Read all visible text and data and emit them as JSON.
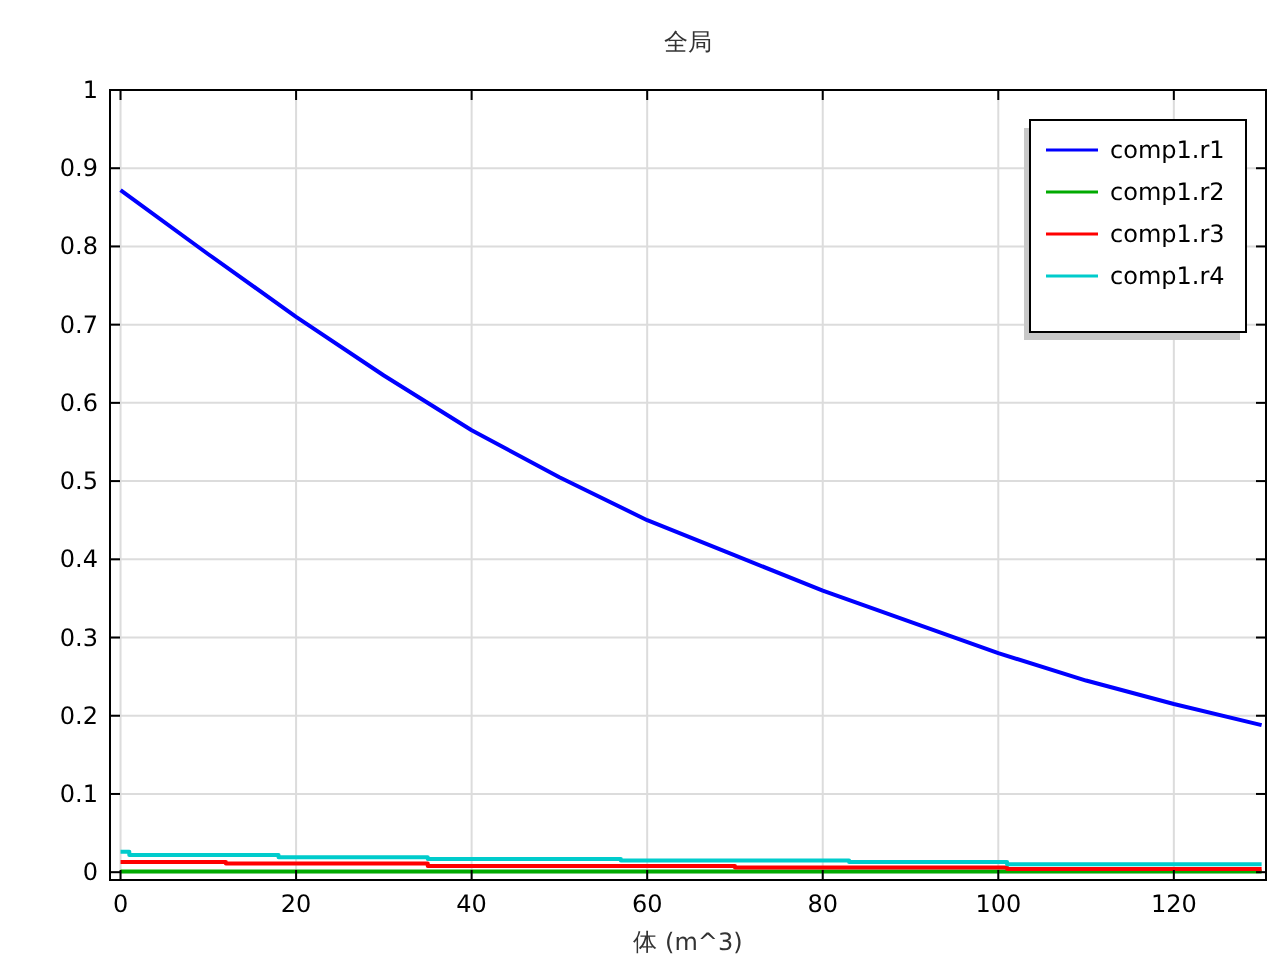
{
  "chart_data": {
    "type": "line",
    "title": "全局",
    "xlabel": "体 (m^3)",
    "xlim": [
      -1.2,
      130.5
    ],
    "ylim": [
      -0.01,
      1
    ],
    "xticks": [
      0,
      20,
      40,
      60,
      80,
      100,
      120
    ],
    "yticks": [
      0,
      0.1,
      0.2,
      0.3,
      0.4,
      0.5,
      0.6,
      0.7,
      0.8,
      0.9,
      1
    ],
    "grid": true,
    "legend": "top right",
    "line_style": "solid",
    "marker": "none",
    "series": [
      {
        "name": "comp1.r1",
        "color": "#0000ff",
        "x": [
          0,
          10,
          20,
          30,
          40,
          50,
          60,
          70,
          80,
          90,
          100,
          110,
          120,
          130
        ],
        "values": [
          0.872,
          0.79,
          0.71,
          0.635,
          0.565,
          0.505,
          0.45,
          0.405,
          0.36,
          0.32,
          0.28,
          0.245,
          0.215,
          0.188
        ]
      },
      {
        "name": "comp1.r2",
        "color": "#00aa00",
        "x": [
          0,
          130
        ],
        "values": [
          0.001,
          0.001
        ]
      },
      {
        "name": "comp1.r3",
        "color": "#ff0000",
        "x": [
          0,
          12,
          12,
          35,
          35,
          70,
          70,
          101,
          101,
          130
        ],
        "values": [
          0.013,
          0.013,
          0.011,
          0.011,
          0.008,
          0.008,
          0.006,
          0.006,
          0.004,
          0.004
        ]
      },
      {
        "name": "comp1.r4",
        "color": "#00cccc",
        "x": [
          0,
          1,
          1,
          18,
          18,
          35,
          35,
          57,
          57,
          83,
          83,
          101,
          101,
          130
        ],
        "values": [
          0.026,
          0.026,
          0.022,
          0.022,
          0.019,
          0.019,
          0.017,
          0.017,
          0.015,
          0.015,
          0.013,
          0.013,
          0.01,
          0.01
        ]
      }
    ]
  }
}
